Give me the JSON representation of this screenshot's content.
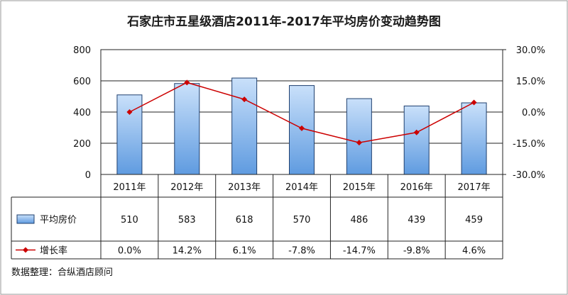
{
  "chart_data": {
    "type": "bar",
    "title": "石家庄市五星级酒店2011年-2017年平均房价变动趋势图",
    "categories": [
      "2011年",
      "2012年",
      "2013年",
      "2014年",
      "2015年",
      "2016年",
      "2017年"
    ],
    "series": [
      {
        "name": "平均房价",
        "type": "bar",
        "axis": "left",
        "values": [
          510,
          583,
          618,
          570,
          486,
          439,
          459
        ],
        "color": "#7fb2e8"
      },
      {
        "name": "增长率",
        "type": "line",
        "axis": "right",
        "values": [
          0.0,
          14.2,
          6.1,
          -7.8,
          -14.7,
          -9.8,
          4.6
        ],
        "color": "#cc0000"
      }
    ],
    "table_values": {
      "bars": [
        "510",
        "583",
        "618",
        "570",
        "486",
        "439",
        "459"
      ],
      "rates": [
        "0.0%",
        "14.2%",
        "6.1%",
        "-7.8%",
        "-14.7%",
        "-9.8%",
        "4.6%"
      ]
    },
    "ylim": [
      0,
      800
    ],
    "yticks": [
      "0",
      "200",
      "400",
      "600",
      "800"
    ],
    "y2lim": [
      -30,
      30
    ],
    "y2ticks": [
      "-30.0%",
      "-15.0%",
      "0.0%",
      "15.0%",
      "30.0%"
    ],
    "grid": true,
    "legend": "data-table-left"
  },
  "source_note": "数据整理：合纵酒店顾问"
}
